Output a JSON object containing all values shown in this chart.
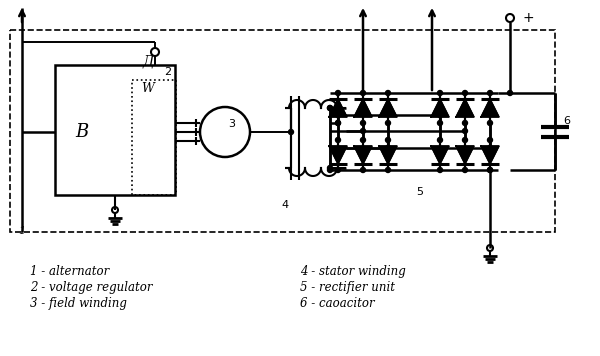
{
  "legend": [
    "1 - alternator",
    "2 - voltage regulator",
    "3 - field winding",
    "4 - stator winding",
    "5 - rectifier unit",
    "6 - caoacitor"
  ],
  "bg_color": "#ffffff",
  "figsize": [
    6.0,
    3.56
  ],
  "dpi": 100
}
